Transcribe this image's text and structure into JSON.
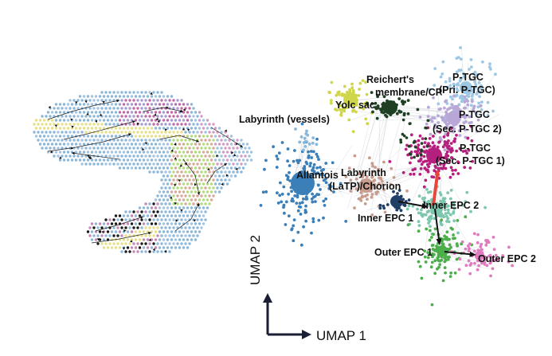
{
  "axes": {
    "x_label": "UMAP 1",
    "y_label": "UMAP 2"
  },
  "colors": {
    "allantois": "#3b7fb8",
    "labyrinth_vessels": "#86b7dc",
    "yolk_sac": "#cfd64a",
    "reicherts": "#1e3f22",
    "pri_ptgc": "#9ec7e3",
    "sec_ptgc2": "#b9a7d8",
    "sec_ptgc1": "#b5207e",
    "latp": "#c89d8e",
    "inner_epc1": "#1f3f66",
    "inner_epc2": "#7cc7ad",
    "outer_epc1": "#4cae4b",
    "outer_epc2": "#e07bbf",
    "arrow_black": "#111111",
    "arrow_red": "#e8463b"
  },
  "clusters": [
    {
      "id": "allantois",
      "label_lines": [
        "Allantois"
      ]
    },
    {
      "id": "labyrinth_vessels",
      "label_lines": [
        "Labyrinth (vessels)"
      ]
    },
    {
      "id": "yolk_sac",
      "label_lines": [
        "Yolc sac"
      ]
    },
    {
      "id": "reicherts",
      "label_lines": [
        "Reichert's",
        "membrane/CP"
      ]
    },
    {
      "id": "pri_ptgc",
      "label_lines": [
        "P-TGC",
        "(Pri. P-TGC)"
      ]
    },
    {
      "id": "sec_ptgc2",
      "label_lines": [
        "P-TGC",
        "(Sec. P-TGC 2)"
      ]
    },
    {
      "id": "sec_ptgc1",
      "label_lines": [
        "P-TGC",
        "(Sec. P-TGC 1)"
      ]
    },
    {
      "id": "latp",
      "label_lines": [
        "Labyrinth",
        "(LaTP)/Chorion"
      ]
    },
    {
      "id": "inner_epc1",
      "label_lines": [
        "Inner EPC 1"
      ]
    },
    {
      "id": "inner_epc2",
      "label_lines": [
        "Inner EPC 2"
      ]
    },
    {
      "id": "outer_epc1",
      "label_lines": [
        "Outer EPC 1"
      ]
    },
    {
      "id": "outer_epc2",
      "label_lines": [
        "Outer EPC 2"
      ]
    }
  ]
}
